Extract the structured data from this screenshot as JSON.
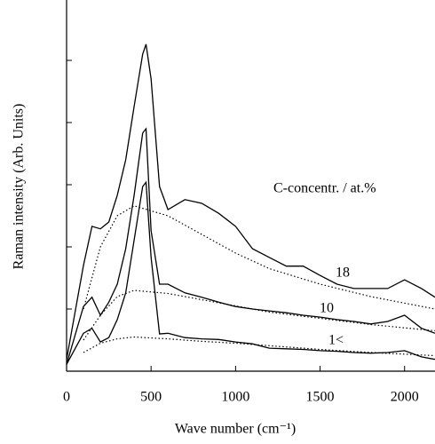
{
  "chart_data": {
    "type": "line",
    "x_label": "Wave number (cm⁻¹)",
    "y_label": "Raman intensity (Arb. Units)",
    "annotation": "C-concentr. / at.%",
    "x": [
      0,
      100,
      150,
      200,
      250,
      300,
      350,
      400,
      450,
      470,
      500,
      550,
      600,
      700,
      800,
      900,
      1000,
      1100,
      1200,
      1300,
      1400,
      1500,
      1600,
      1700,
      1800,
      1900,
      2000,
      2100,
      2180
    ],
    "baseline_x": [
      100,
      200,
      300,
      400,
      600,
      800,
      1000,
      1200,
      1500,
      1800,
      2180
    ],
    "series": [
      {
        "name": "18",
        "color": "#000000",
        "values": [
          0.19,
          1.7,
          2.33,
          2.29,
          2.4,
          2.83,
          3.4,
          4.26,
          5.1,
          5.26,
          4.7,
          2.97,
          2.6,
          2.76,
          2.7,
          2.54,
          2.33,
          1.97,
          1.83,
          1.69,
          1.69,
          1.54,
          1.4,
          1.33,
          1.33,
          1.33,
          1.47,
          1.33,
          1.19
        ],
        "baseline": [
          1.0,
          2.0,
          2.5,
          2.66,
          2.5,
          2.2,
          1.9,
          1.65,
          1.4,
          1.2,
          1.0
        ]
      },
      {
        "name": "10",
        "color": "#000000",
        "values": [
          0.11,
          1.04,
          1.19,
          0.9,
          1.11,
          1.4,
          1.97,
          2.83,
          3.83,
          3.9,
          2.26,
          1.4,
          1.4,
          1.26,
          1.19,
          1.11,
          1.04,
          1.0,
          0.97,
          0.94,
          0.9,
          0.87,
          0.83,
          0.8,
          0.76,
          0.8,
          0.9,
          0.69,
          0.61
        ],
        "baseline": [
          0.5,
          0.9,
          1.2,
          1.3,
          1.25,
          1.15,
          1.05,
          0.95,
          0.85,
          0.75,
          0.65
        ]
      },
      {
        "name": "1<",
        "color": "#000000",
        "values": [
          0.11,
          0.61,
          0.69,
          0.47,
          0.54,
          0.83,
          1.26,
          2.11,
          2.97,
          3.04,
          1.83,
          0.6,
          0.61,
          0.54,
          0.52,
          0.51,
          0.47,
          0.44,
          0.37,
          0.36,
          0.35,
          0.33,
          0.32,
          0.3,
          0.29,
          0.3,
          0.33,
          0.23,
          0.19
        ],
        "baseline": [
          0.3,
          0.45,
          0.52,
          0.55,
          0.52,
          0.48,
          0.45,
          0.41,
          0.35,
          0.3,
          0.25
        ]
      }
    ],
    "xlim": [
      0,
      2180
    ],
    "xticks": [
      0,
      500,
      1000,
      1500,
      2000
    ],
    "ylim": [
      0,
      6
    ],
    "yticks": [
      0,
      1,
      2,
      3,
      4,
      5,
      6
    ],
    "grid": false
  }
}
